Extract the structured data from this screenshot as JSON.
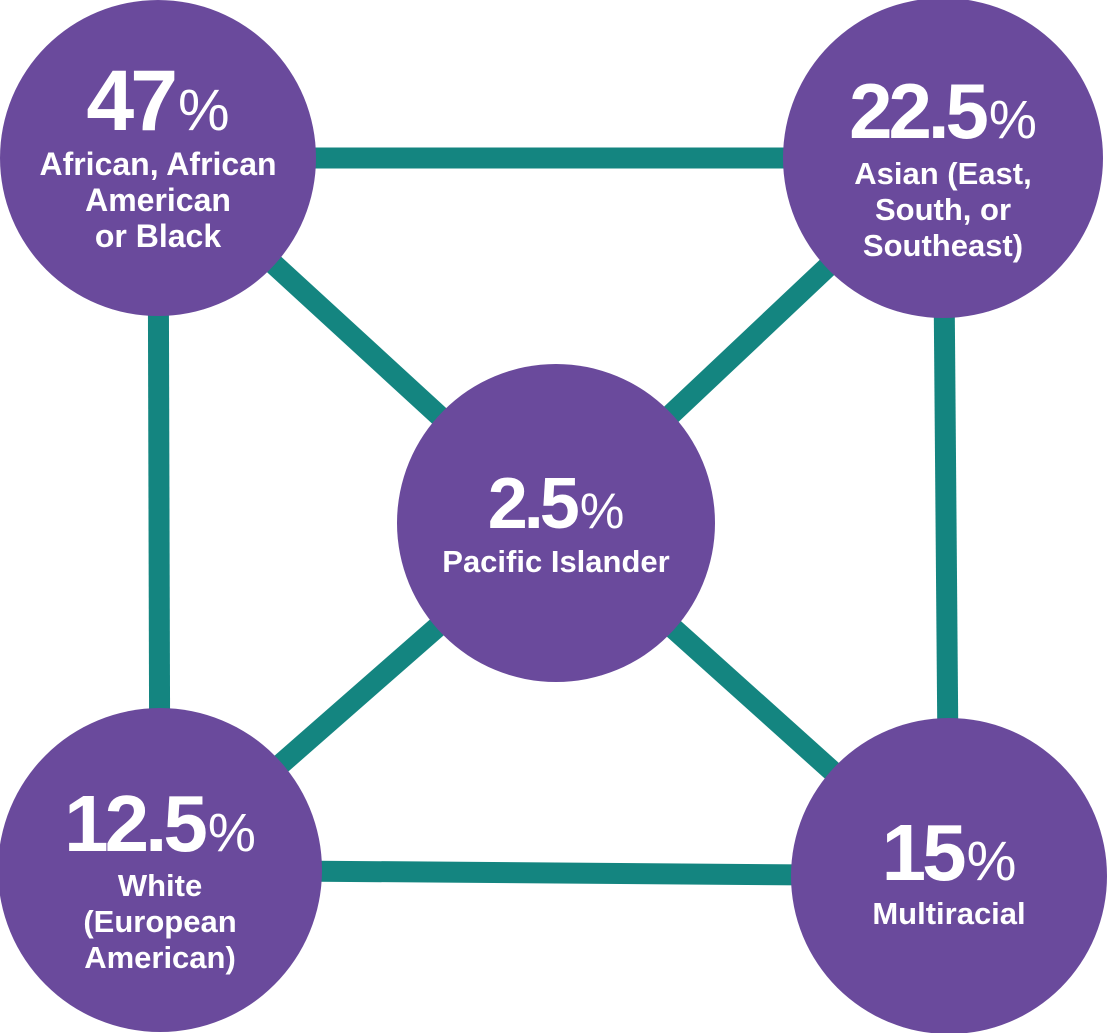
{
  "colors": {
    "node_fill": "#6a4a9c",
    "connector": "#148580",
    "text": "#ffffff",
    "background": "#ffffff"
  },
  "nodes": [
    {
      "id": "african",
      "value": "47",
      "unit": "%",
      "label_lines": [
        "African, African",
        "American",
        "or Black"
      ]
    },
    {
      "id": "asian",
      "value": "22.5",
      "unit": "%",
      "label_lines": [
        "Asian (East,",
        "South, or",
        "Southeast)"
      ]
    },
    {
      "id": "pacific-islander",
      "value": "2.5",
      "unit": "%",
      "label_lines": [
        "Pacific Islander"
      ]
    },
    {
      "id": "white",
      "value": "12.5",
      "unit": "%",
      "label_lines": [
        "White",
        "(European",
        "American)"
      ]
    },
    {
      "id": "multiracial",
      "value": "15",
      "unit": "%",
      "label_lines": [
        "Multiracial"
      ]
    }
  ],
  "edges": [
    [
      "african",
      "asian"
    ],
    [
      "african",
      "white"
    ],
    [
      "asian",
      "multiracial"
    ],
    [
      "white",
      "multiracial"
    ],
    [
      "african",
      "pacific-islander"
    ],
    [
      "asian",
      "pacific-islander"
    ],
    [
      "white",
      "pacific-islander"
    ],
    [
      "multiracial",
      "pacific-islander"
    ]
  ]
}
